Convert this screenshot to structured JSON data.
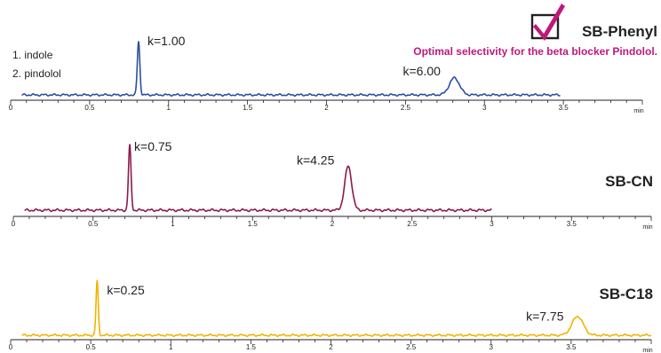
{
  "legend": [
    "1. indole",
    "2. pindolol"
  ],
  "note": "Optimal selectivity for the beta blocker Pindolol.",
  "note_color": "#c0187a",
  "check_color": "#c0187a",
  "unit": "min",
  "chart_data": [
    {
      "type": "line",
      "name": "SB-Phenyl",
      "color": "#2c4ea0",
      "xlim": [
        0,
        4
      ],
      "ticks": [
        0,
        0.5,
        1,
        1.5,
        2,
        2.5,
        3,
        3.5
      ],
      "tick_labels": [
        "0",
        "0.5",
        "1",
        "1.5",
        "2",
        "2.5",
        "3",
        "3.5"
      ],
      "trace_end": 3.48,
      "peaks": [
        {
          "rt": 0.81,
          "height": 1.0,
          "sigma": 0.008,
          "label": "k=1.00"
        },
        {
          "rt": 2.81,
          "height": 0.32,
          "sigma": 0.032,
          "label": "k=6.00"
        }
      ]
    },
    {
      "type": "line",
      "name": "SB-CN",
      "color": "#8b1a4d",
      "xlim": [
        0,
        4
      ],
      "ticks": [
        0,
        0.5,
        1,
        1.5,
        2,
        2.5,
        3,
        3.5
      ],
      "tick_labels": [
        "0",
        "0.5",
        "1",
        "1.5",
        "2",
        "2.5",
        "3",
        "3.5"
      ],
      "trace_end": 3.0,
      "peaks": [
        {
          "rt": 0.73,
          "height": 1.0,
          "sigma": 0.008,
          "label": "k=0.75"
        },
        {
          "rt": 2.1,
          "height": 0.68,
          "sigma": 0.022,
          "label": "k=4.25"
        }
      ]
    },
    {
      "type": "line",
      "name": "SB-C18",
      "color": "#f0b400",
      "xlim": [
        0,
        4
      ],
      "ticks": [
        0,
        0.5,
        1,
        1.5,
        2,
        2.5,
        3,
        3.5
      ],
      "tick_labels": [
        "0",
        "0.5",
        "1",
        "1.5",
        "2",
        "2.5",
        "3",
        "3.5"
      ],
      "trace_end": 4.0,
      "peaks": [
        {
          "rt": 0.54,
          "height": 1.0,
          "sigma": 0.007,
          "label": "k=0.25"
        },
        {
          "rt": 3.54,
          "height": 0.35,
          "sigma": 0.035,
          "label": "k=7.75"
        }
      ]
    }
  ]
}
